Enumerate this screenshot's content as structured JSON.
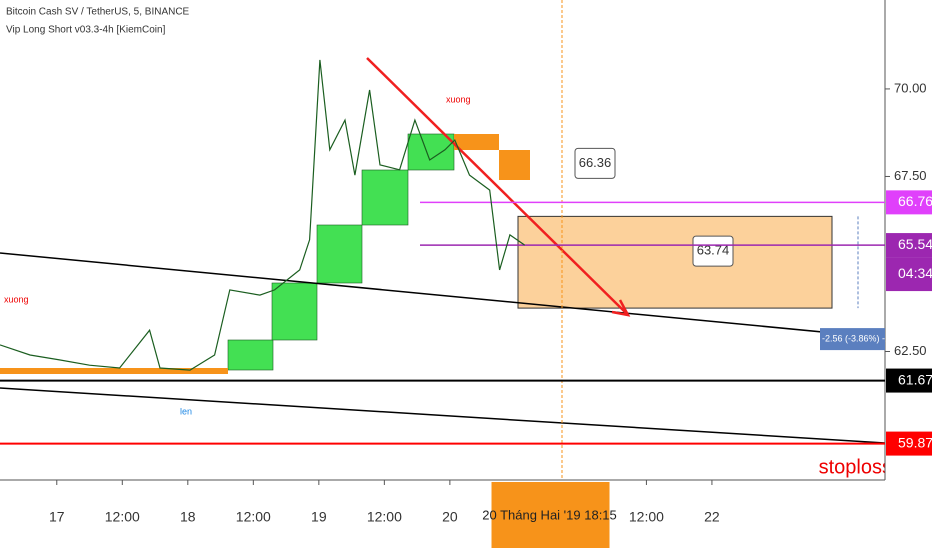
{
  "chart_data": {
    "type": "line",
    "title": "Bitcoin Cash SV / TetherUS, 5, BINANCE",
    "subtitle": "Vip Long Short v03.3-4h [KiemCoin]",
    "x": [
      -10.4,
      -4.9,
      0.5,
      6.0,
      11.5,
      17.0,
      18.9,
      24.4,
      28.9,
      31.7,
      37.2,
      39.9,
      44.5,
      46.3,
      48.2,
      50.0,
      52.8,
      54.6,
      57.3,
      59.2,
      62.8,
      65.6,
      68.3,
      71.1,
      72.9,
      75.6,
      79.3,
      81.1,
      83.0,
      85.7
    ],
    "series": [
      {
        "name": "BSVUSDT",
        "color": "#1b5e20",
        "values": [
          62.69,
          62.4,
          62.26,
          62.11,
          62.03,
          63.11,
          62.03,
          61.97,
          62.4,
          64.26,
          64.11,
          64.26,
          64.83,
          65.69,
          70.83,
          68.26,
          69.11,
          67.54,
          69.97,
          67.83,
          67.69,
          69.11,
          67.97,
          68.26,
          68.54,
          67.54,
          67.11,
          64.83,
          65.83,
          65.54
        ]
      }
    ],
    "xlim": [
      -10.4,
      151.7
    ],
    "ylim": [
      58.83,
      72.54
    ],
    "xticks": [
      {
        "value": 0,
        "label": "17"
      },
      {
        "value": 12,
        "label": "12:00"
      },
      {
        "value": 24,
        "label": "18"
      },
      {
        "value": 36,
        "label": "12:00"
      },
      {
        "value": 48,
        "label": "19"
      },
      {
        "value": 60,
        "label": "12:00"
      },
      {
        "value": 72,
        "label": "20"
      },
      {
        "value": 108,
        "label": "12:00"
      },
      {
        "value": 120,
        "label": "22"
      }
    ],
    "yticks": [
      {
        "value": 70,
        "label": "70.00"
      },
      {
        "value": 67.5,
        "label": "67.50"
      },
      {
        "value": 62.5,
        "label": "62.50"
      }
    ],
    "price_labels": [
      {
        "value": 66.76,
        "color": "#e040fb"
      },
      {
        "value": 65.54,
        "color": "#9c27b0"
      },
      {
        "value": 61.67,
        "color": "#000000"
      },
      {
        "value": 59.87,
        "color": "#ff0000"
      }
    ],
    "countdown": "04:34",
    "crosshair": {
      "value": 90.25,
      "label": "20 Tháng Hai '19   18:15"
    },
    "target_box": [
      66.36,
      63.74
    ],
    "measure": "-2.56 (-3.86%) -256",
    "annotations": [
      "xuong",
      "xuong",
      "len",
      "stoploss"
    ]
  }
}
